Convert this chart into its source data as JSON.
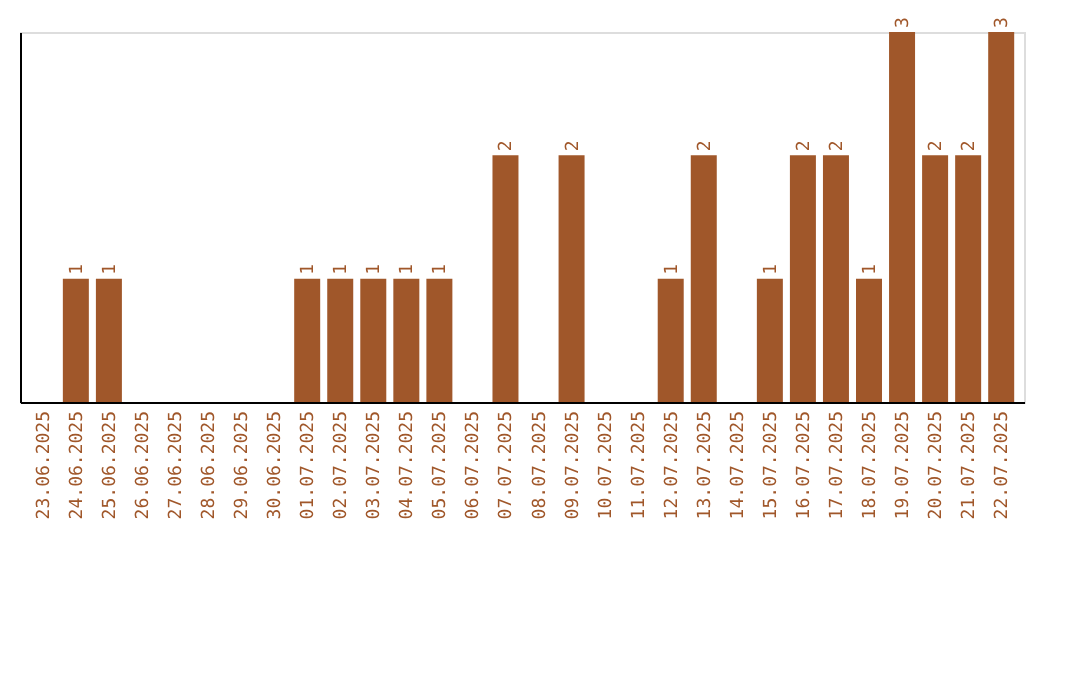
{
  "chart_data": {
    "type": "bar",
    "categories": [
      "23.06.2025",
      "24.06.2025",
      "25.06.2025",
      "26.06.2025",
      "27.06.2025",
      "28.06.2025",
      "29.06.2025",
      "30.06.2025",
      "01.07.2025",
      "02.07.2025",
      "03.07.2025",
      "04.07.2025",
      "05.07.2025",
      "06.07.2025",
      "07.07.2025",
      "08.07.2025",
      "09.07.2025",
      "10.07.2025",
      "11.07.2025",
      "12.07.2025",
      "13.07.2025",
      "14.07.2025",
      "15.07.2025",
      "16.07.2025",
      "17.07.2025",
      "18.07.2025",
      "19.07.2025",
      "20.07.2025",
      "21.07.2025",
      "22.07.2025"
    ],
    "values": [
      0,
      1,
      1,
      0,
      0,
      0,
      0,
      0,
      1,
      1,
      1,
      1,
      1,
      0,
      2,
      0,
      2,
      0,
      0,
      1,
      2,
      0,
      1,
      2,
      2,
      1,
      3,
      2,
      2,
      3
    ],
    "value_labels": [
      null,
      "1",
      "1",
      null,
      null,
      null,
      null,
      null,
      "1",
      "1",
      "1",
      "1",
      "1",
      null,
      "2",
      null,
      "2",
      null,
      null,
      "1",
      "2",
      null,
      "1",
      "2",
      "2",
      "1",
      "3",
      "2",
      "2",
      "3"
    ],
    "color": "#a0572a",
    "ylim": [
      0,
      3
    ],
    "tick_labels": "x",
    "grid": false
  }
}
